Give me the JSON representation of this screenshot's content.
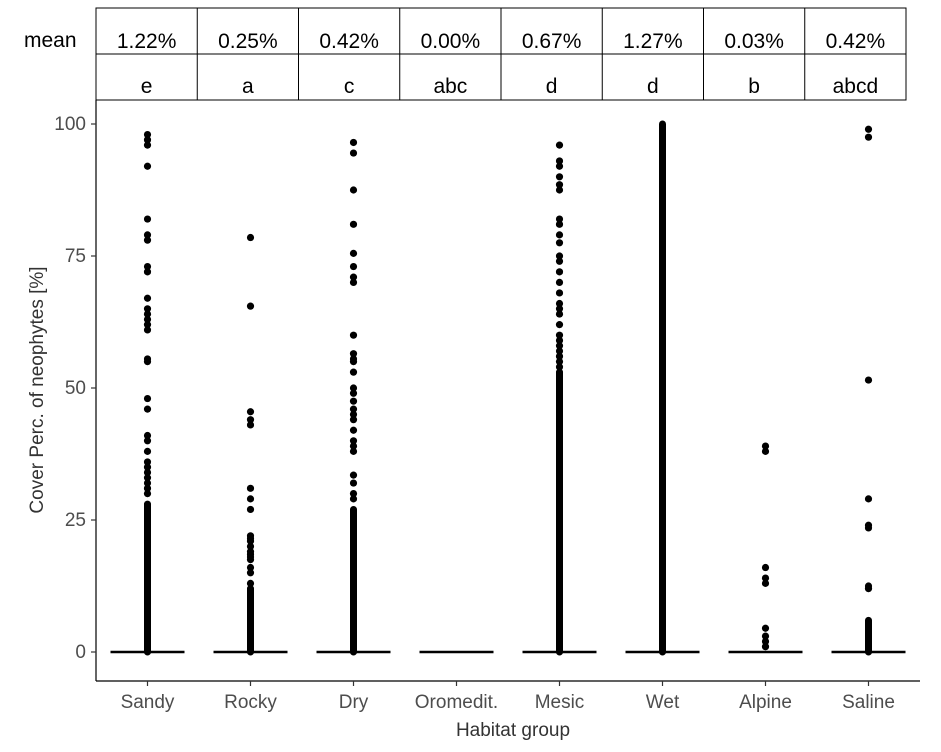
{
  "table": {
    "row_label": "mean",
    "means": [
      "1.22%",
      "0.25%",
      "0.42%",
      "0.00%",
      "0.67%",
      "1.27%",
      "0.03%",
      "0.42%"
    ],
    "letters": [
      "e",
      "a",
      "c",
      "abc",
      "d",
      "d",
      "b",
      "abcd"
    ]
  },
  "chart_data": {
    "type": "scatter",
    "xlabel": "Habitat group",
    "ylabel": "Cover Perc. of neophytes [%]",
    "ylim": [
      0,
      100
    ],
    "yticks": [
      0,
      25,
      50,
      75,
      100
    ],
    "grid": false,
    "categories": [
      "Sandy",
      "Rocky",
      "Dry",
      "Oromedit.",
      "Mesic",
      "Wet",
      "Alpine",
      "Saline"
    ],
    "median": [
      0,
      0,
      0,
      0,
      0,
      0,
      0,
      0
    ],
    "dense_ranges": [
      [
        0,
        28
      ],
      [
        0,
        12
      ],
      [
        0,
        27
      ],
      null,
      [
        0,
        53
      ],
      [
        0,
        100
      ],
      null,
      [
        0,
        6
      ]
    ],
    "points": [
      [
        98,
        97,
        96,
        92,
        82,
        79,
        78,
        73,
        72,
        67,
        65,
        64,
        63,
        62,
        61,
        55.5,
        55,
        48,
        46,
        41,
        40,
        38,
        36,
        35,
        34,
        33,
        32,
        31,
        30
      ],
      [
        78.5,
        65.5,
        45.5,
        44,
        43,
        31,
        29,
        27,
        22,
        21.5,
        21,
        20,
        19,
        18.5,
        18,
        17.5,
        16,
        15,
        13
      ],
      [
        96.5,
        94.5,
        87.5,
        81,
        75.5,
        73,
        71,
        70,
        60,
        56.5,
        55.5,
        55,
        53,
        50,
        49,
        47.5,
        46,
        45,
        44,
        42,
        40,
        39,
        38,
        33.5,
        32,
        30,
        29
      ],
      [],
      [
        96,
        93,
        92,
        90,
        88.5,
        87.5,
        82,
        81,
        79,
        77.5,
        75,
        74,
        72,
        70,
        68,
        66,
        65,
        64,
        62,
        60,
        59,
        58,
        57,
        56,
        55,
        54
      ],
      [],
      [
        39,
        38,
        16,
        14,
        13,
        4.5,
        3,
        2,
        1
      ],
      [
        99,
        97.5,
        51.5,
        29,
        24,
        23.5,
        12.5,
        12
      ]
    ]
  }
}
